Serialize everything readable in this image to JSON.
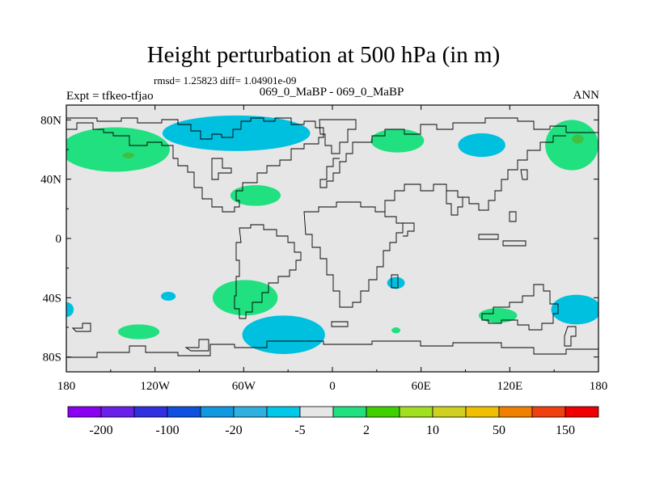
{
  "title": "Height perturbation at 500 hPa (in m)",
  "stats": "rmsd= 1.25823 diff= 1.04901e-09",
  "subtitle": "069_0_MaBP - 069_0_MaBP",
  "expt": "Expt = tfkeo-tfjao",
  "season": "ANN",
  "map": {
    "projection": "cylindrical-equidistant",
    "lon_range": [
      -180,
      180
    ],
    "lat_range": [
      -90,
      90
    ],
    "background_color": "#e6e6e6",
    "x_ticks": [
      {
        "lon": -180,
        "label": "180"
      },
      {
        "lon": -120,
        "label": "120W"
      },
      {
        "lon": -60,
        "label": "60W"
      },
      {
        "lon": 0,
        "label": "0"
      },
      {
        "lon": 60,
        "label": "60E"
      },
      {
        "lon": 120,
        "label": "120E"
      },
      {
        "lon": 180,
        "label": "180"
      }
    ],
    "y_ticks": [
      {
        "lat": 80,
        "label": "80N"
      },
      {
        "lat": 40,
        "label": "40N"
      },
      {
        "lat": 0,
        "label": "0"
      },
      {
        "lat": -40,
        "label": "40S"
      },
      {
        "lat": -80,
        "label": "80S"
      }
    ],
    "anomalies": [
      {
        "name": "north-pacific-negative",
        "sign": "negative",
        "lon": -65,
        "lat": 71,
        "rlon": 50,
        "rlat": 12,
        "color": "#00c0e0"
      },
      {
        "name": "west-us-positive",
        "sign": "positive",
        "lon": -147,
        "lat": 60,
        "rlon": 37,
        "rlat": 15,
        "color": "#20e080"
      },
      {
        "name": "west-us-core",
        "sign": "positive",
        "lon": -138,
        "lat": 56,
        "rlon": 4,
        "rlat": 2,
        "color": "#40c040"
      },
      {
        "name": "north-atlantic-positive",
        "sign": "positive",
        "lon": -52,
        "lat": 29,
        "rlon": 17,
        "rlat": 7,
        "color": "#20e080"
      },
      {
        "name": "siberia-positive",
        "sign": "positive",
        "lon": 44,
        "lat": 66,
        "rlon": 18,
        "rlat": 8,
        "color": "#20e080"
      },
      {
        "name": "central-asia-negative",
        "sign": "negative",
        "lon": 101,
        "lat": 63,
        "rlon": 16,
        "rlat": 8,
        "color": "#00c0e0"
      },
      {
        "name": "far-east-positive",
        "sign": "positive",
        "lon": 162,
        "lat": 63,
        "rlon": 18,
        "rlat": 17,
        "color": "#20e080"
      },
      {
        "name": "far-east-core",
        "sign": "positive",
        "lon": 166,
        "lat": 67,
        "rlon": 4,
        "rlat": 3,
        "color": "#40c040"
      },
      {
        "name": "south-pacific-positive",
        "sign": "positive",
        "lon": -59,
        "lat": -40,
        "rlon": 22,
        "rlat": 12,
        "color": "#20e080"
      },
      {
        "name": "southern-ocean-negative",
        "sign": "negative",
        "lon": -33,
        "lat": -65,
        "rlon": 28,
        "rlat": 13,
        "color": "#00c0e0"
      },
      {
        "name": "south-pacific-small-positive",
        "sign": "positive",
        "lon": -131,
        "lat": -63,
        "rlon": 14,
        "rlat": 5,
        "color": "#20e080"
      },
      {
        "name": "indian-ocean-small-negative",
        "sign": "negative",
        "lon": 43,
        "lat": -30,
        "rlon": 6,
        "rlat": 4,
        "color": "#00c0e0"
      },
      {
        "name": "australia-positive",
        "sign": "positive",
        "lon": 112,
        "lat": -52,
        "rlon": 13,
        "rlat": 5,
        "color": "#20e080"
      },
      {
        "name": "tasman-negative",
        "sign": "negative",
        "lon": 165,
        "lat": -48,
        "rlon": 17,
        "rlat": 10,
        "color": "#00c0e0"
      },
      {
        "name": "west-edge-negative",
        "sign": "negative",
        "lon": -180,
        "lat": -48,
        "rlon": 5,
        "rlat": 5,
        "color": "#00c0e0"
      },
      {
        "name": "southern-indian-small-positive",
        "sign": "positive",
        "lon": 43,
        "lat": -62,
        "rlon": 3,
        "rlat": 2,
        "color": "#20e080"
      },
      {
        "name": "pacific-small-negative",
        "sign": "negative",
        "lon": -111,
        "lat": -39,
        "rlon": 5,
        "rlat": 3,
        "color": "#00c0e0"
      }
    ]
  },
  "colorbar": {
    "colors": [
      "#8a00f0",
      "#6a20e8",
      "#3030e0",
      "#1050e0",
      "#1098e0",
      "#30b0e0",
      "#00c8e8",
      "#e6e6e6",
      "#20e080",
      "#40d000",
      "#a0e020",
      "#d0d020",
      "#f0c000",
      "#f08000",
      "#f04010",
      "#f00000"
    ],
    "labels": [
      "-200",
      "-100",
      "-20",
      "-5",
      "2",
      "10",
      "50",
      "150"
    ]
  }
}
